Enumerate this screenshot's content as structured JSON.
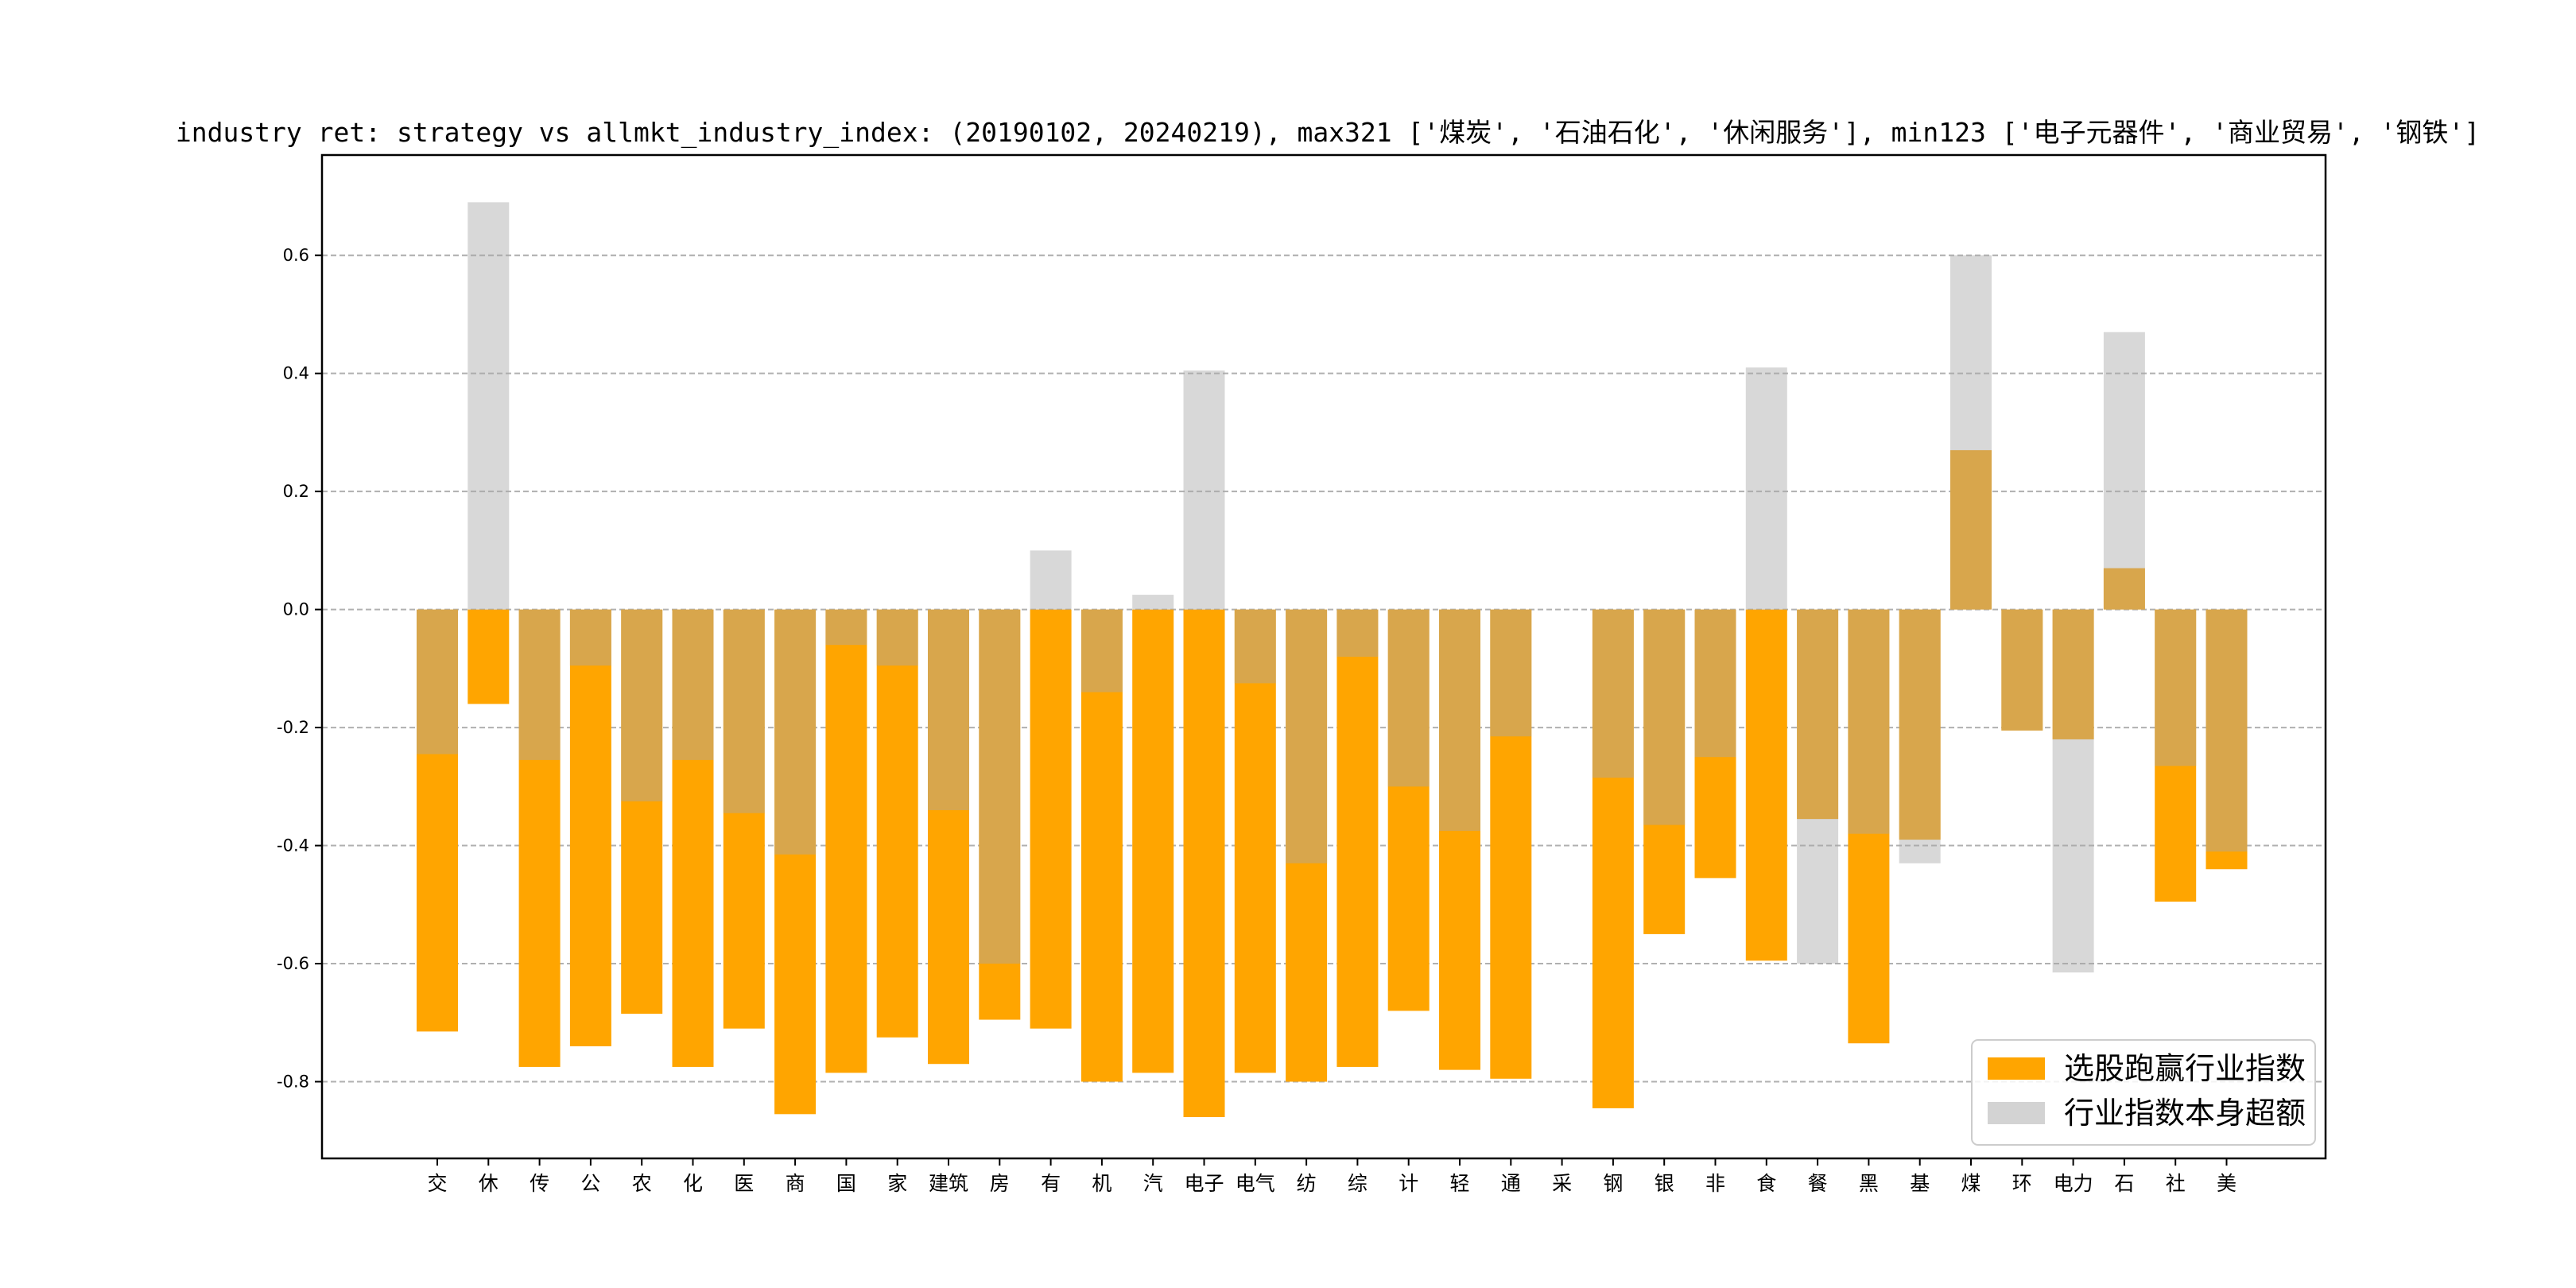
{
  "chart_data": {
    "type": "bar",
    "title": "industry ret: strategy vs allmkt_industry_index: (20190102, 20240219), max321 ['煤炭', '石油石化', '休闲服务'], min123 ['电子元器件', '商业贸易', '钢铁']",
    "xlabel": "",
    "ylabel": "",
    "ylim": [
      -0.93,
      0.77
    ],
    "yticks": [
      0.6,
      0.4,
      0.2,
      0.0,
      -0.2,
      -0.4,
      -0.6,
      -0.8
    ],
    "ytick_labels": [
      "0.6",
      "0.4",
      "0.2",
      "0.0",
      "-0.2",
      "-0.4",
      "-0.6",
      "-0.8"
    ],
    "grid": "y-dashed",
    "legend_position": "bottom-right",
    "categories": [
      "交",
      "休",
      "传",
      "公",
      "农",
      "化",
      "医",
      "商",
      "国",
      "家",
      "建筑",
      "房",
      "有",
      "机",
      "汽",
      "电子",
      "电气",
      "纺",
      "综",
      "计",
      "轻",
      "通",
      "采",
      "钢",
      "银",
      "非",
      "食",
      "餐",
      "黑",
      "基",
      "煤",
      "环",
      "电力",
      "石",
      "社",
      "美"
    ],
    "series": [
      {
        "name": "选股跑赢行业指数",
        "color": "#ffa500",
        "values": [
          -0.715,
          -0.16,
          -0.775,
          -0.74,
          -0.685,
          -0.775,
          -0.71,
          -0.855,
          -0.785,
          -0.725,
          -0.77,
          -0.695,
          -0.71,
          -0.8,
          -0.785,
          -0.86,
          -0.785,
          -0.8,
          -0.775,
          -0.68,
          -0.78,
          -0.795,
          0.0,
          -0.845,
          -0.55,
          -0.455,
          -0.595,
          -0.355,
          -0.735,
          -0.39,
          0.27,
          -0.205,
          -0.22,
          0.07,
          -0.495,
          -0.44
        ]
      },
      {
        "name": "行业指数本身超额",
        "color": "#d3d3d3",
        "values": [
          -0.245,
          0.69,
          -0.255,
          -0.095,
          -0.325,
          -0.255,
          -0.345,
          -0.415,
          -0.06,
          -0.095,
          -0.34,
          -0.6,
          0.1,
          -0.14,
          0.025,
          0.405,
          -0.125,
          -0.43,
          -0.08,
          -0.3,
          -0.375,
          -0.215,
          0.0,
          -0.285,
          -0.365,
          -0.25,
          0.41,
          -0.6,
          -0.38,
          -0.43,
          0.6,
          -0.205,
          -0.615,
          0.47,
          -0.265,
          -0.41
        ]
      }
    ]
  }
}
